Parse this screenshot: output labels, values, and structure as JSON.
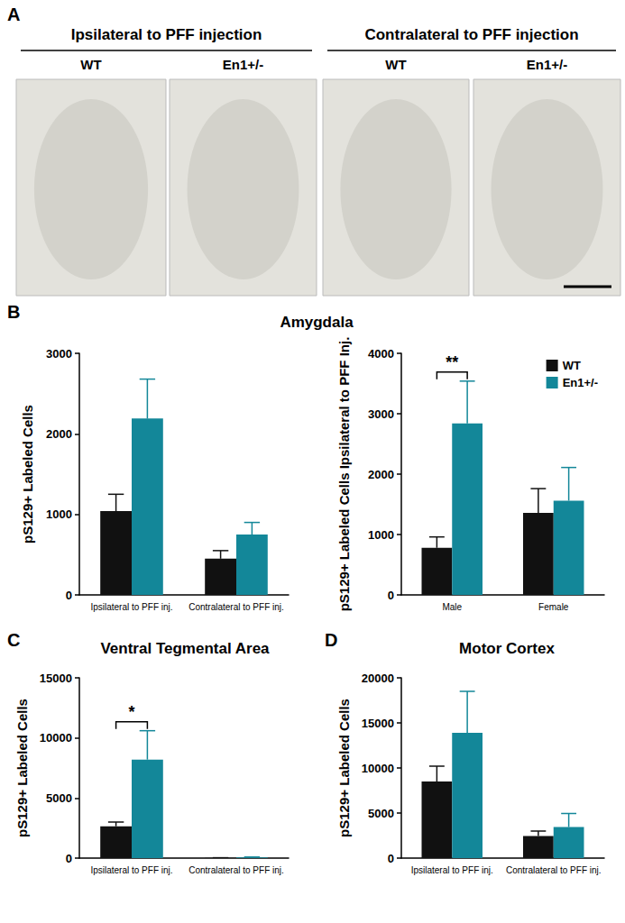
{
  "panel_a": {
    "label": "A",
    "groups": [
      {
        "title": "Ipsilateral to PFF injection",
        "columns": [
          "WT",
          "En1+/-"
        ]
      },
      {
        "title": "Contralateral to PFF injection",
        "columns": [
          "WT",
          "En1+/-"
        ]
      }
    ]
  },
  "chart_data": [
    {
      "type": "bar",
      "panel_label": "B",
      "title": "Amygdala",
      "y_label": "pS129+ Labeled Cells",
      "categories": [
        "Ipsilateral to PFF inj.",
        "Contralateral to PFF inj."
      ],
      "series": [
        {
          "name": "WT",
          "color": "#111111",
          "values": [
            1040,
            450
          ],
          "errors": [
            210,
            100
          ]
        },
        {
          "name": "En1+/-",
          "color": "#138799",
          "values": [
            2190,
            750
          ],
          "errors": [
            490,
            150
          ]
        }
      ],
      "ylim": [
        0,
        3000
      ],
      "yticks": [
        0,
        1000,
        2000,
        3000
      ],
      "grid": false
    },
    {
      "type": "bar",
      "y_label": "pS129+ Labeled Cells Ipsilateral to PFF Inj.",
      "categories": [
        "Male",
        "Female"
      ],
      "series": [
        {
          "name": "WT",
          "color": "#111111",
          "values": [
            780,
            1360
          ],
          "errors": [
            180,
            400
          ]
        },
        {
          "name": "En1+/-",
          "color": "#138799",
          "values": [
            2840,
            1560
          ],
          "errors": [
            700,
            550
          ]
        }
      ],
      "ylim": [
        0,
        4000
      ],
      "yticks": [
        0,
        1000,
        2000,
        3000,
        4000
      ],
      "grid": false,
      "legend": "upper right",
      "annotations": [
        {
          "text": "**",
          "category": "Male"
        }
      ]
    },
    {
      "type": "bar",
      "panel_label": "C",
      "title": "Ventral Tegmental Area",
      "y_label": "pS129+ Labeled Cells",
      "categories": [
        "Ipsilateral to PFF inj.",
        "Contralateral to PFF inj."
      ],
      "series": [
        {
          "name": "WT",
          "color": "#111111",
          "values": [
            2650,
            20
          ],
          "errors": [
            350,
            10
          ]
        },
        {
          "name": "En1+/-",
          "color": "#138799",
          "values": [
            8200,
            60
          ],
          "errors": [
            2400,
            30
          ]
        }
      ],
      "ylim": [
        0,
        15000
      ],
      "yticks": [
        0,
        5000,
        10000,
        15000
      ],
      "grid": false,
      "annotations": [
        {
          "text": "*",
          "category": "Ipsilateral to PFF inj."
        }
      ]
    },
    {
      "type": "bar",
      "panel_label": "D",
      "title": "Motor Cortex",
      "y_label": "pS129+ Labeled Cells",
      "categories": [
        "Ipsilateral to PFF inj.",
        "Contralateral to PFF inj."
      ],
      "series": [
        {
          "name": "WT",
          "color": "#111111",
          "values": [
            8500,
            2450
          ],
          "errors": [
            1700,
            550
          ]
        },
        {
          "name": "En1+/-",
          "color": "#138799",
          "values": [
            13900,
            3450
          ],
          "errors": [
            4600,
            1500
          ]
        }
      ],
      "ylim": [
        0,
        20000
      ],
      "yticks": [
        0,
        5000,
        10000,
        15000,
        20000
      ],
      "grid": false
    }
  ]
}
